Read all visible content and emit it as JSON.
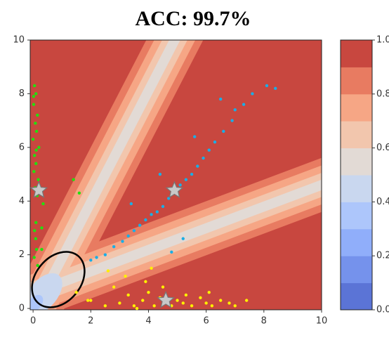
{
  "chart_data": {
    "type": "scatter",
    "title": "ACC: 99.7%",
    "xlim": [
      -0.1,
      10
    ],
    "ylim": [
      -0.05,
      10
    ],
    "xticks": [
      0,
      2,
      4,
      6,
      8,
      10
    ],
    "yticks": [
      0,
      2,
      4,
      6,
      8,
      10
    ],
    "series": [
      {
        "color": "#22e00f",
        "marker": "circle",
        "x": [
          0.05,
          0.1,
          0.02,
          0.15,
          0.08,
          0.12,
          0.0,
          0.2,
          0.05,
          0.1,
          0.03,
          0.18,
          0.07,
          0.14,
          0.35,
          0.3,
          1.4,
          1.6,
          0.1,
          0.05,
          0.09,
          0.12,
          0.04,
          0.16,
          0.02,
          0.11,
          0.3
        ],
        "y": [
          8.3,
          8.0,
          7.6,
          7.2,
          6.9,
          6.6,
          6.3,
          6.0,
          5.7,
          5.4,
          5.1,
          4.8,
          4.5,
          4.2,
          3.9,
          3.0,
          4.8,
          4.3,
          3.2,
          2.9,
          2.6,
          2.2,
          1.9,
          1.6,
          7.9,
          5.9,
          2.2
        ]
      },
      {
        "color": "#1aaee6",
        "marker": "circle",
        "x": [
          8.4,
          8.1,
          7.6,
          7.3,
          7.0,
          6.9,
          6.6,
          6.3,
          6.1,
          5.9,
          5.7,
          5.5,
          5.3,
          5.1,
          4.9,
          4.7,
          4.5,
          4.3,
          4.1,
          3.9,
          3.7,
          3.5,
          3.3,
          3.1,
          2.8,
          2.5,
          2.2,
          5.6,
          6.5,
          4.4,
          3.4,
          2.0,
          4.8,
          5.2
        ],
        "y": [
          8.2,
          8.3,
          8.0,
          7.6,
          7.4,
          7.0,
          6.6,
          6.2,
          5.9,
          5.6,
          5.3,
          5.0,
          4.8,
          4.6,
          4.3,
          4.1,
          3.8,
          3.6,
          3.5,
          3.3,
          3.1,
          2.9,
          2.7,
          2.5,
          2.3,
          2.0,
          1.9,
          6.4,
          7.8,
          5.0,
          3.9,
          1.8,
          2.1,
          2.6
        ]
      },
      {
        "color": "#fff000",
        "marker": "circle",
        "x": [
          1.5,
          2.0,
          2.5,
          2.8,
          3.0,
          3.3,
          3.5,
          3.8,
          4.0,
          4.2,
          4.4,
          4.6,
          4.8,
          5.0,
          5.2,
          5.5,
          5.8,
          6.0,
          6.2,
          6.5,
          6.8,
          7.0,
          7.4,
          3.2,
          3.9,
          4.5,
          5.3,
          2.6,
          6.1,
          4.1,
          1.9,
          3.6
        ],
        "y": [
          0.6,
          0.3,
          0.1,
          0.8,
          0.2,
          0.5,
          0.1,
          0.3,
          0.6,
          0.1,
          0.4,
          0.2,
          0.1,
          0.3,
          0.2,
          0.1,
          0.4,
          0.2,
          0.1,
          0.3,
          0.2,
          0.1,
          0.3,
          1.2,
          1.0,
          0.8,
          0.5,
          1.4,
          0.6,
          1.5,
          0.3,
          0.0
        ]
      },
      {
        "color": "#c8c8c8",
        "marker": "star",
        "x": [
          0.2,
          4.9,
          4.6
        ],
        "y": [
          4.4,
          4.4,
          0.3
        ]
      }
    ],
    "colorbar": {
      "lim": [
        0,
        1
      ],
      "colors": [
        "#5b74d6",
        "#7592ec",
        "#90aefa",
        "#adc6fb",
        "#c9d7ef",
        "#e2dad5",
        "#f2c6ad",
        "#f6a685",
        "#e87b61",
        "#c8473f"
      ],
      "ticks": [
        {
          "value": 0,
          "label": "0.0"
        },
        {
          "value": 0.2,
          "label": "0.2"
        },
        {
          "value": 0.4,
          "label": "0.4"
        },
        {
          "value": 0.6,
          "label": "0.6"
        },
        {
          "value": 0.8,
          "label": "0.8"
        },
        {
          "value": 1,
          "label": "1.0"
        }
      ]
    }
  }
}
